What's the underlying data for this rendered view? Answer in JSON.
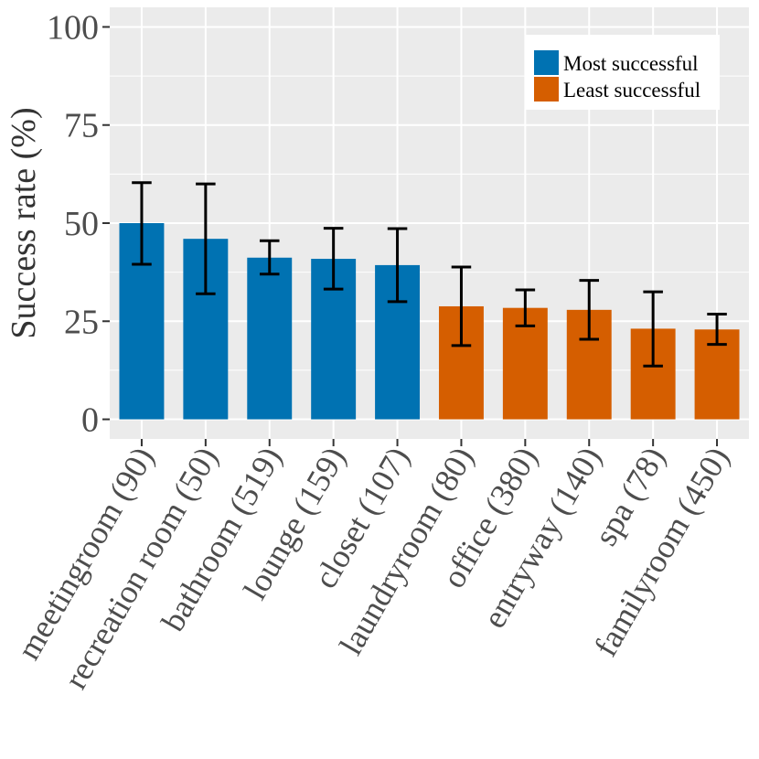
{
  "chart_data": {
    "type": "bar",
    "title": "",
    "xlabel": "",
    "ylabel": "Success rate (%)",
    "ylim": [
      -5,
      105
    ],
    "yticks": [
      0,
      25,
      50,
      75,
      100
    ],
    "yticks_labels": [
      "0",
      "25",
      "50",
      "75",
      "100"
    ],
    "grid": true,
    "legend_position": "top-right",
    "categories": [
      "meetingroom (90)",
      "recreation room (50)",
      "bathroom (519)",
      "lounge (159)",
      "closet (107)",
      "laundryroom (80)",
      "office (380)",
      "entryway (140)",
      "spa (78)",
      "familyroom (450)"
    ],
    "values": [
      50.0,
      46.0,
      41.2,
      40.9,
      39.3,
      28.8,
      28.4,
      27.9,
      23.1,
      22.9
    ],
    "err_low": [
      39.5,
      32.0,
      37.0,
      33.2,
      30.0,
      18.8,
      23.8,
      20.4,
      13.6,
      19.1
    ],
    "err_high": [
      60.3,
      60.0,
      45.5,
      48.7,
      48.6,
      38.8,
      33.0,
      35.4,
      32.5,
      26.8
    ],
    "groups": [
      "most",
      "most",
      "most",
      "most",
      "most",
      "least",
      "least",
      "least",
      "least",
      "least"
    ],
    "series": [
      {
        "key": "most",
        "name": "Most successful",
        "color": "#0072B2"
      },
      {
        "key": "least",
        "name": "Least successful",
        "color": "#D55E00"
      }
    ],
    "panel_color": "#EBEBEB",
    "grid_color": "#FFFFFF"
  }
}
